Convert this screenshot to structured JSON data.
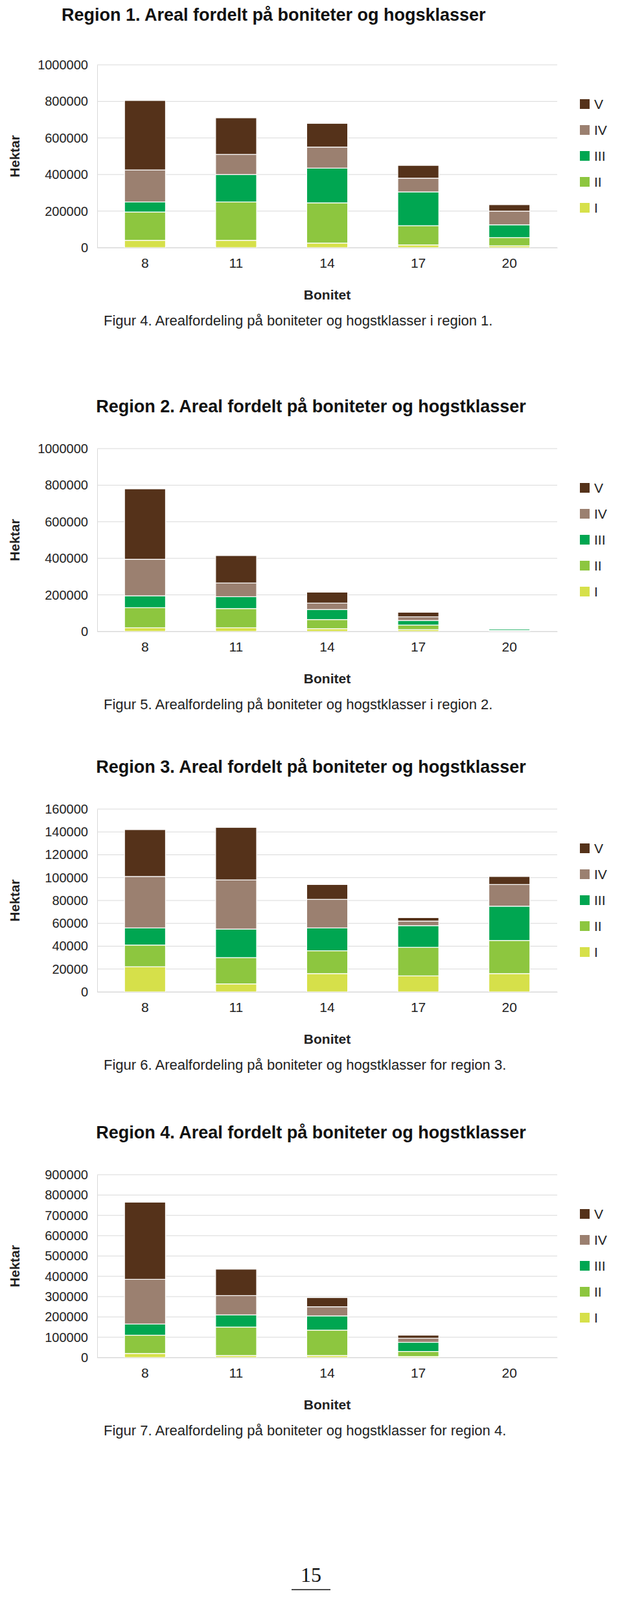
{
  "chart_data": [
    {
      "type": "bar",
      "stacked": true,
      "grid": true,
      "legend": "right",
      "title": "Region 1. Areal fordelt på boniteter og hogsklasser",
      "caption": "Figur 4. Arealfordeling på boniteter og hogstklasser i region 1.",
      "x_label": "Bonitet",
      "y_label": "Hektar",
      "categories": [
        "8",
        "11",
        "14",
        "17",
        "20"
      ],
      "ylim": [
        0,
        1000000
      ],
      "yticks": [
        0,
        200000,
        400000,
        600000,
        800000,
        1000000
      ],
      "series": [
        {
          "name": "I",
          "color": "#d6e04a",
          "values": [
            40000,
            40000,
            25000,
            15000,
            10000
          ]
        },
        {
          "name": "II",
          "color": "#8dc63f",
          "values": [
            155000,
            210000,
            220000,
            105000,
            45000
          ]
        },
        {
          "name": "III",
          "color": "#00a651",
          "values": [
            55000,
            150000,
            190000,
            185000,
            70000
          ]
        },
        {
          "name": "IV",
          "color": "#9b8070",
          "values": [
            175000,
            110000,
            115000,
            75000,
            75000
          ]
        },
        {
          "name": "V",
          "color": "#55321a",
          "values": [
            380000,
            200000,
            130000,
            70000,
            35000
          ]
        }
      ]
    },
    {
      "type": "bar",
      "stacked": true,
      "grid": true,
      "legend": "right",
      "title": "Region 2. Areal fordelt på boniteter og hogstklasser",
      "caption": "Figur 5. Arealfordeling på boniteter og hogstklasser i region 2.",
      "x_label": "Bonitet",
      "y_label": "Hektar",
      "categories": [
        "8",
        "11",
        "14",
        "17",
        "20"
      ],
      "ylim": [
        0,
        1000000
      ],
      "yticks": [
        0,
        200000,
        400000,
        600000,
        800000,
        1000000
      ],
      "series": [
        {
          "name": "I",
          "color": "#d6e04a",
          "values": [
            20000,
            20000,
            15000,
            10000,
            2000
          ]
        },
        {
          "name": "II",
          "color": "#8dc63f",
          "values": [
            110000,
            105000,
            50000,
            25000,
            4000
          ]
        },
        {
          "name": "III",
          "color": "#00a651",
          "values": [
            65000,
            65000,
            55000,
            25000,
            8000
          ]
        },
        {
          "name": "IV",
          "color": "#9b8070",
          "values": [
            200000,
            75000,
            35000,
            20000,
            1000
          ]
        },
        {
          "name": "V",
          "color": "#55321a",
          "values": [
            385000,
            150000,
            60000,
            25000,
            1000
          ]
        }
      ]
    },
    {
      "type": "bar",
      "stacked": true,
      "grid": true,
      "legend": "right",
      "title": "Region 3. Areal fordelt på boniteter og hogstklasser",
      "caption": "Figur 6. Arealfordeling på boniteter og hogstklasser for region 3.",
      "x_label": "Bonitet",
      "y_label": "Hektar",
      "categories": [
        "8",
        "11",
        "14",
        "17",
        "20"
      ],
      "ylim": [
        0,
        160000
      ],
      "yticks": [
        0,
        20000,
        40000,
        60000,
        80000,
        100000,
        120000,
        140000,
        160000
      ],
      "series": [
        {
          "name": "I",
          "color": "#d6e04a",
          "values": [
            22000,
            7000,
            16000,
            14000,
            16000
          ]
        },
        {
          "name": "II",
          "color": "#8dc63f",
          "values": [
            19000,
            23000,
            20000,
            25000,
            29000
          ]
        },
        {
          "name": "III",
          "color": "#00a651",
          "values": [
            15000,
            25000,
            20000,
            19000,
            30000
          ]
        },
        {
          "name": "IV",
          "color": "#9b8070",
          "values": [
            45000,
            43000,
            25000,
            4000,
            19000
          ]
        },
        {
          "name": "V",
          "color": "#55321a",
          "values": [
            41000,
            46000,
            13000,
            3000,
            7000
          ]
        }
      ]
    },
    {
      "type": "bar",
      "stacked": true,
      "grid": true,
      "legend": "right",
      "title": "Region 4. Areal fordelt på boniteter og hogstklasser",
      "caption": "Figur 7. Arealfordeling på boniteter og hogstklasser for region 4.",
      "x_label": "Bonitet",
      "y_label": "Hektar",
      "categories": [
        "8",
        "11",
        "14",
        "17",
        "20"
      ],
      "ylim": [
        0,
        900000
      ],
      "yticks": [
        0,
        100000,
        200000,
        300000,
        400000,
        500000,
        600000,
        700000,
        800000,
        900000
      ],
      "series": [
        {
          "name": "I",
          "color": "#d6e04a",
          "values": [
            20000,
            10000,
            10000,
            5000,
            0
          ]
        },
        {
          "name": "II",
          "color": "#8dc63f",
          "values": [
            90000,
            140000,
            125000,
            25000,
            0
          ]
        },
        {
          "name": "III",
          "color": "#00a651",
          "values": [
            55000,
            60000,
            70000,
            45000,
            0
          ]
        },
        {
          "name": "IV",
          "color": "#9b8070",
          "values": [
            220000,
            95000,
            45000,
            20000,
            0
          ]
        },
        {
          "name": "V",
          "color": "#55321a",
          "values": [
            380000,
            130000,
            45000,
            15000,
            0
          ]
        }
      ]
    }
  ],
  "page": {
    "number": "15"
  }
}
